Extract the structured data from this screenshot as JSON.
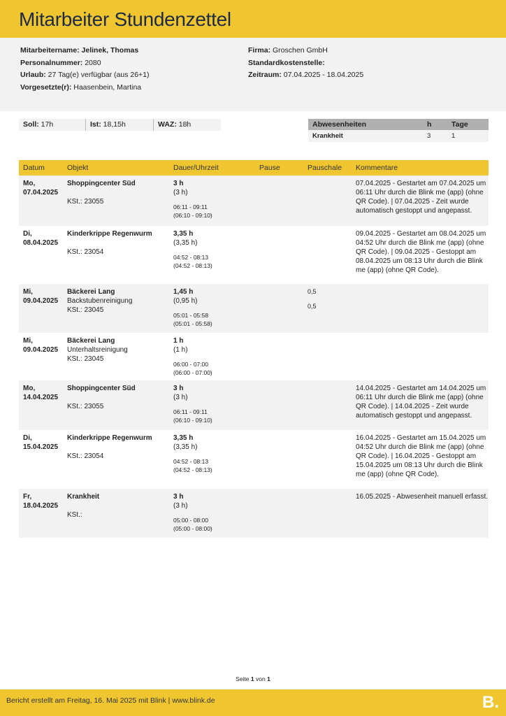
{
  "title": "Mitarbeiter Stundenzettel",
  "info": {
    "name_label": "Mitarbeitername:",
    "name": "Jelinek, Thomas",
    "pnr_label": "Personalnummer:",
    "pnr": "2080",
    "urlaub_label": "Urlaub:",
    "urlaub": "27 Tag(e) verfügbar (aus 26+1)",
    "vorg_label": "Vorgesetzte(r):",
    "vorg": "Haasenbein, Martina",
    "firma_label": "Firma:",
    "firma": "Groschen GmbH",
    "kst_label": "Standardkostenstelle:",
    "kst": "",
    "zeit_label": "Zeitraum:",
    "zeit": "07.04.2025 - 18.04.2025"
  },
  "summary": {
    "soll_label": "Soll:",
    "soll": "17h",
    "ist_label": "Ist:",
    "ist": "18,15h",
    "waz_label": "WAZ:",
    "waz": "18h"
  },
  "absences": {
    "headers": [
      "Abwesenheiten",
      "h",
      "Tage"
    ],
    "rows": [
      {
        "type": "Krankheit",
        "h": "3",
        "tage": "1"
      }
    ]
  },
  "table": {
    "headers": [
      "Datum",
      "Objekt",
      "Dauer/Uhrzeit",
      "Pause",
      "Pauschale",
      "Kommentare"
    ],
    "rows": [
      {
        "day": "Mo,",
        "date": "07.04.2025",
        "obj": "Shoppingcenter Süd",
        "sub": "",
        "kst": "KSt.: 23055",
        "dur": "3 h",
        "dur2": "(3 h)",
        "t1": "06:11 - 09:11",
        "t2": "(06:10 - 09:10)",
        "p1": "",
        "p2": "",
        "comment": "07.04.2025 - Gestartet am 07.04.2025 um 06:11 Uhr durch die Blink me (app) (ohne QR Code). | 07.04.2025 - Zeit wurde automatisch gestoppt und angepasst."
      },
      {
        "day": "Di,",
        "date": "08.04.2025",
        "obj": "Kinderkrippe Regenwurm",
        "sub": "",
        "kst": "KSt.: 23054",
        "dur": "3,35 h",
        "dur2": "(3,35 h)",
        "t1": "04:52 - 08:13",
        "t2": "(04:52 - 08:13)",
        "p1": "",
        "p2": "",
        "comment": "09.04.2025 - Gestartet am 08.04.2025 um 04:52 Uhr durch die Blink me (app) (ohne QR Code). | 09.04.2025 - Gestoppt am 08.04.2025 um 08:13 Uhr durch die Blink me (app) (ohne QR Code)."
      },
      {
        "day": "Mi,",
        "date": "09.04.2025",
        "obj": "Bäckerei Lang",
        "sub": "Backstubenreinigung",
        "kst": "KSt.: 23045",
        "dur": "1,45 h",
        "dur2": "(0,95 h)",
        "t1": "05:01 - 05:58",
        "t2": "(05:01 - 05:58)",
        "p1": "0,5",
        "p2": "0,5",
        "comment": ""
      },
      {
        "day": "Mi,",
        "date": "09.04.2025",
        "obj": "Bäckerei Lang",
        "sub": "Unterhaltsreinigung",
        "kst": "KSt.: 23045",
        "dur": "1 h",
        "dur2": "(1 h)",
        "t1": "06:00 - 07:00",
        "t2": "(06:00 - 07:00)",
        "p1": "",
        "p2": "",
        "comment": ""
      },
      {
        "day": "Mo,",
        "date": "14.04.2025",
        "obj": "Shoppingcenter Süd",
        "sub": "",
        "kst": "KSt.: 23055",
        "dur": "3 h",
        "dur2": "(3 h)",
        "t1": "06:11 - 09:11",
        "t2": "(06:10 - 09:10)",
        "p1": "",
        "p2": "",
        "comment": "14.04.2025 - Gestartet am 14.04.2025 um 06:11 Uhr durch die Blink me (app) (ohne QR Code). | 14.04.2025 - Zeit wurde automatisch gestoppt und angepasst."
      },
      {
        "day": "Di,",
        "date": "15.04.2025",
        "obj": "Kinderkrippe Regenwurm",
        "sub": "",
        "kst": "KSt.: 23054",
        "dur": "3,35 h",
        "dur2": "(3,35 h)",
        "t1": "04:52 - 08:13",
        "t2": "(04:52 - 08:13)",
        "p1": "",
        "p2": "",
        "comment": "16.04.2025 - Gestartet am 15.04.2025 um 04:52 Uhr durch die Blink me (app) (ohne QR Code). | 16.04.2025 - Gestoppt am 15.04.2025 um 08:13 Uhr durch die Blink me (app) (ohne QR Code)."
      },
      {
        "day": "Fr,",
        "date": "18.04.2025",
        "obj": "Krankheit",
        "sub": "",
        "kst": "KSt.:",
        "dur": "3 h",
        "dur2": "(3 h)",
        "t1": "05:00 - 08:00",
        "t2": "(05:00 - 08:00)",
        "p1": "",
        "p2": "",
        "comment": "16.05.2025 - Abwesenheit manuell erfasst."
      }
    ]
  },
  "page": {
    "prefix": "Seite",
    "current": "1",
    "mid": "von",
    "total": "1"
  },
  "footer": {
    "text": "Bericht erstellt am Freitag, 16. Mai 2025 mit Blink | www.blink.de",
    "logo": "B."
  },
  "colors": {
    "accent": "#f0c630",
    "panel": "#f2f2f2"
  }
}
